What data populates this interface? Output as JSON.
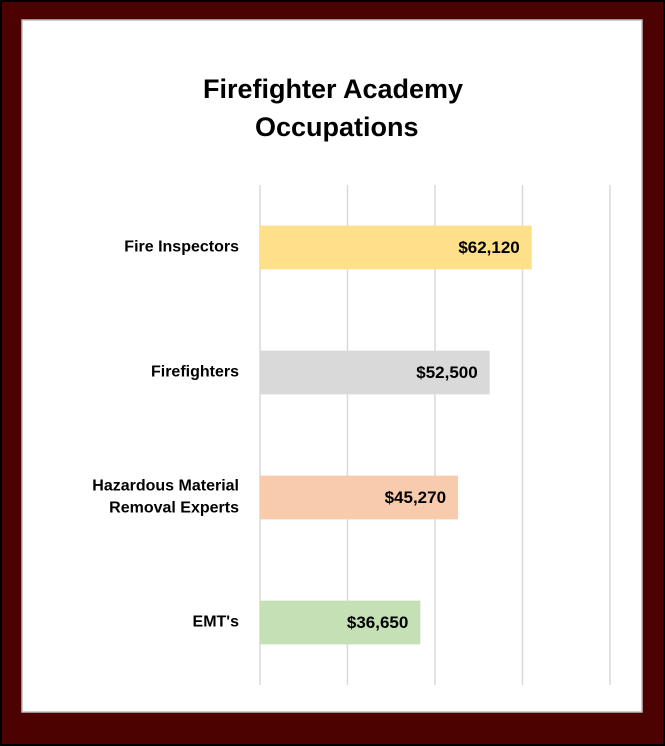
{
  "chart_data": {
    "type": "barh",
    "title": "Firefighter Academy Occupations",
    "categories": [
      "Fire Inspectors",
      "Firefighters",
      "Hazardous Material Removal Experts",
      "EMT's"
    ],
    "values": [
      62120,
      52500,
      45270,
      36650
    ],
    "value_labels": [
      "$62,120",
      "$52,500",
      "$45,270",
      "$36,650"
    ],
    "colors": [
      "#ffe08a",
      "#d9d9d9",
      "#f8cbad",
      "#c5e0b4"
    ],
    "xlim": [
      0,
      80000
    ],
    "xticks": [
      0,
      20000,
      40000,
      60000,
      80000
    ],
    "grid": true
  }
}
